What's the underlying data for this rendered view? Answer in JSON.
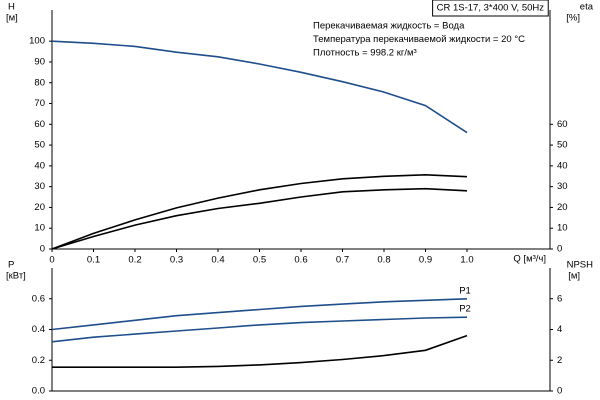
{
  "chart_data": [
    {
      "type": "line",
      "title": "CR 1S-17, 3*400 V, 50Hz",
      "annotations": [
        "Перекачиваемая жидкость = Вода",
        "Температура перекачиваемой жидкости = 20 °C",
        "Плотность = 998.2 кг/м³"
      ],
      "ylabel": "H",
      "yunit": "[м]",
      "y2label": "eta",
      "y2unit": "[%]",
      "xlabel": "Q [м³/ч]",
      "x": [
        0,
        0.1,
        0.2,
        0.3,
        0.4,
        0.5,
        0.6,
        0.7,
        0.8,
        0.9,
        1.0
      ],
      "xlim": [
        0,
        1.2
      ],
      "xticks": [
        0,
        0.1,
        0.2,
        0.3,
        0.4,
        0.5,
        0.6,
        0.7,
        0.8,
        0.9,
        {
          "value": 1,
          "label": "1.0"
        }
      ],
      "ylim": [
        0,
        115
      ],
      "yticks": [
        0,
        10,
        20,
        30,
        40,
        50,
        60,
        70,
        80,
        90,
        100
      ],
      "y2lim": [
        0,
        115
      ],
      "y2ticks": [
        0,
        10,
        20,
        30,
        40,
        50,
        60
      ],
      "series": [
        {
          "color": "#1f4e8c",
          "axis": "y",
          "values": [
            100,
            99,
            97.5,
            94.7,
            92.5,
            89,
            85,
            80.5,
            75.5,
            69,
            56
          ]
        },
        {
          "color": "#000000",
          "axis": "y2",
          "values": [
            0,
            7.5,
            14,
            19.8,
            24.5,
            28.5,
            31.5,
            33.8,
            35,
            35.7,
            34.8
          ]
        },
        {
          "color": "#000000",
          "axis": "y2",
          "values": [
            0,
            6,
            11.5,
            16,
            19.5,
            22,
            25,
            27.5,
            28.5,
            29,
            28
          ]
        }
      ]
    },
    {
      "type": "line",
      "ylabel": "P",
      "yunit": "[кВт]",
      "y2label": "NPSH",
      "y2unit": "[м]",
      "x": [
        0,
        0.1,
        0.2,
        0.3,
        0.4,
        0.5,
        0.6,
        0.7,
        0.8,
        0.9,
        1.0
      ],
      "xlim": [
        0,
        1.2
      ],
      "ylim": [
        0,
        0.8
      ],
      "yticks": [
        {
          "value": 0,
          "label": "0.0"
        },
        0.2,
        0.4,
        0.6
      ],
      "y2lim": [
        0,
        8
      ],
      "y2ticks": [
        0,
        2,
        4,
        6
      ],
      "series": [
        {
          "name": "P1",
          "color": "#1f4e8c",
          "axis": "y",
          "values": [
            0.4,
            0.43,
            0.46,
            0.49,
            0.51,
            0.53,
            0.55,
            0.565,
            0.58,
            0.59,
            0.6
          ]
        },
        {
          "name": "P2",
          "color": "#1f4e8c",
          "axis": "y",
          "values": [
            0.32,
            0.35,
            0.37,
            0.39,
            0.41,
            0.43,
            0.445,
            0.455,
            0.465,
            0.475,
            0.48
          ]
        },
        {
          "color": "#000000",
          "axis": "y2",
          "values": [
            1.55,
            1.55,
            1.55,
            1.55,
            1.6,
            1.7,
            1.85,
            2.05,
            2.3,
            2.65,
            3.6
          ]
        }
      ]
    }
  ]
}
